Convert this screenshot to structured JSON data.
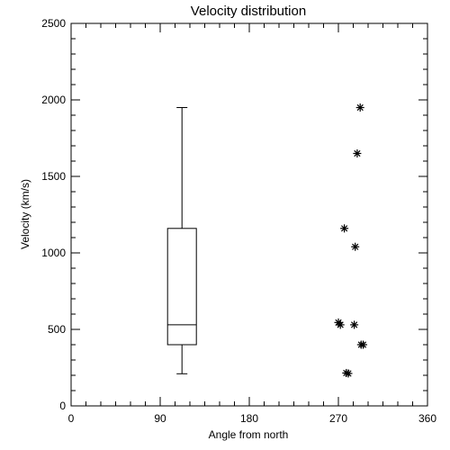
{
  "chart_data": {
    "type": "box",
    "title": "Velocity distribution",
    "xlabel": "Angle from north",
    "ylabel": "Velocity (km/s)",
    "xlim": [
      0,
      360
    ],
    "ylim": [
      0,
      2500
    ],
    "xticks": [
      0,
      90,
      180,
      270,
      360
    ],
    "yticks": [
      0,
      500,
      1000,
      1500,
      2000,
      2500
    ],
    "grid": false,
    "box": {
      "x": 112,
      "min": 210,
      "q1": 400,
      "median": 530,
      "q3": 1160,
      "max": 1950
    },
    "points": [
      {
        "x": 292,
        "y": 1950
      },
      {
        "x": 289,
        "y": 1650
      },
      {
        "x": 276,
        "y": 1160
      },
      {
        "x": 287,
        "y": 1040
      },
      {
        "x": 270,
        "y": 545
      },
      {
        "x": 272,
        "y": 530
      },
      {
        "x": 286,
        "y": 530
      },
      {
        "x": 295,
        "y": 400
      },
      {
        "x": 293,
        "y": 400
      },
      {
        "x": 278,
        "y": 215
      },
      {
        "x": 280,
        "y": 212
      }
    ]
  }
}
